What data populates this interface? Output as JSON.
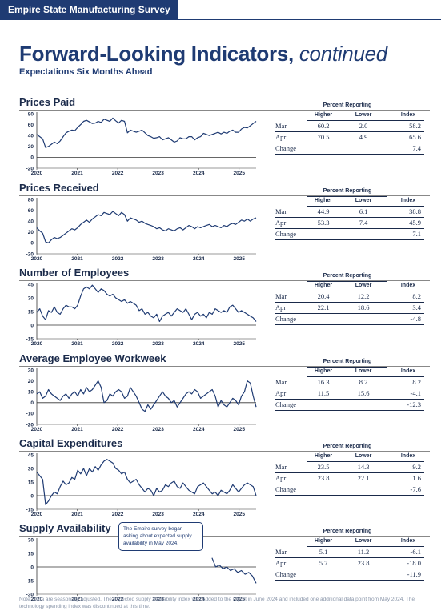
{
  "header": {
    "banner": "Empire State Manufacturing Survey",
    "title": "Forward-Looking Indicators,",
    "title_italic": "continued",
    "subtitle": "Expectations Six Months Ahead"
  },
  "table_labels": {
    "percent_reporting": "Percent Reporting",
    "higher": "Higher",
    "lower": "Lower",
    "index": "Index",
    "rows": [
      "Mar",
      "Apr",
      "Change"
    ]
  },
  "callout": "The Empire survey began asking about expected supply availability in May 2024.",
  "note": "Note: Data are seasonally adjusted. The expected supply availability index was added to the report in June 2024 and included one additional data point from May 2024. The technology spending index was discontinued at this time.",
  "chart_data": [
    {
      "type": "line",
      "title": "Prices Paid",
      "x_ticks": [
        "2020",
        "2021",
        "2022",
        "2023",
        "2024",
        "2025"
      ],
      "y_ticks": [
        "80",
        "60",
        "40",
        "20",
        "0",
        "-20"
      ],
      "ylim": [
        -20,
        80
      ],
      "x_start": 2020.0,
      "values": [
        42,
        38,
        34,
        18,
        20,
        24,
        28,
        25,
        30,
        38,
        45,
        48,
        50,
        49,
        55,
        60,
        66,
        68,
        65,
        62,
        63,
        66,
        64,
        70,
        68,
        66,
        72,
        67,
        63,
        68,
        66,
        45,
        50,
        48,
        46,
        48,
        50,
        45,
        40,
        38,
        35,
        36,
        38,
        32,
        34,
        36,
        32,
        28,
        30,
        36,
        34,
        34,
        38,
        38,
        32,
        36,
        38,
        44,
        42,
        40,
        42,
        44,
        46,
        43,
        46,
        44,
        48,
        50,
        46,
        46,
        52,
        55,
        54,
        58,
        62,
        66
      ],
      "table": {
        "mar": [
          "60.2",
          "2.0",
          "58.2"
        ],
        "apr": [
          "70.5",
          "4.9",
          "65.6"
        ],
        "change": "7.4"
      }
    },
    {
      "type": "line",
      "title": "Prices Received",
      "x_ticks": [
        "2020",
        "2021",
        "2022",
        "2023",
        "2024",
        "2025"
      ],
      "y_ticks": [
        "80",
        "60",
        "40",
        "20",
        "0",
        "-20"
      ],
      "ylim": [
        -20,
        80
      ],
      "x_start": 2020.0,
      "values": [
        28,
        22,
        18,
        2,
        0,
        6,
        10,
        8,
        10,
        14,
        18,
        22,
        26,
        24,
        28,
        34,
        38,
        42,
        38,
        44,
        48,
        52,
        50,
        56,
        54,
        52,
        58,
        54,
        50,
        56,
        52,
        40,
        46,
        44,
        42,
        38,
        40,
        36,
        34,
        32,
        30,
        26,
        28,
        24,
        22,
        26,
        24,
        22,
        26,
        28,
        24,
        28,
        32,
        30,
        26,
        30,
        28,
        30,
        32,
        34,
        30,
        32,
        30,
        28,
        32,
        30,
        34,
        36,
        34,
        38,
        42,
        40,
        44,
        40,
        44,
        46
      ],
      "table": {
        "mar": [
          "44.9",
          "6.1",
          "38.8"
        ],
        "apr": [
          "53.3",
          "7.4",
          "45.9"
        ],
        "change": "7.1"
      }
    },
    {
      "type": "line",
      "title": "Number of Employees",
      "x_ticks": [
        "2020",
        "2021",
        "2022",
        "2023",
        "2024",
        "2025"
      ],
      "y_ticks": [
        "45",
        "30",
        "15",
        "0",
        "-15"
      ],
      "ylim": [
        -15,
        45
      ],
      "x_start": 2020.0,
      "values": [
        14,
        18,
        10,
        6,
        16,
        14,
        20,
        14,
        12,
        18,
        22,
        20,
        20,
        18,
        22,
        32,
        40,
        42,
        40,
        44,
        40,
        36,
        40,
        38,
        34,
        32,
        34,
        30,
        28,
        26,
        28,
        24,
        26,
        24,
        22,
        16,
        18,
        12,
        14,
        10,
        8,
        12,
        4,
        10,
        12,
        14,
        10,
        14,
        18,
        16,
        14,
        18,
        12,
        6,
        12,
        14,
        10,
        12,
        8,
        14,
        12,
        18,
        16,
        14,
        16,
        14,
        20,
        22,
        18,
        14,
        16,
        14,
        12,
        10,
        8,
        4
      ],
      "table": {
        "mar": [
          "20.4",
          "12.2",
          "8.2"
        ],
        "apr": [
          "22.1",
          "18.6",
          "3.4"
        ],
        "change": "-4.8"
      }
    },
    {
      "type": "line",
      "title": "Average Employee Workweek",
      "x_ticks": [
        "2020",
        "2021",
        "2022",
        "2023",
        "2024",
        "2025"
      ],
      "y_ticks": [
        "30",
        "20",
        "10",
        "0",
        "-10",
        "-20"
      ],
      "ylim": [
        -20,
        30
      ],
      "x_start": 2020.0,
      "values": [
        8,
        10,
        4,
        6,
        12,
        8,
        6,
        4,
        2,
        6,
        8,
        4,
        8,
        10,
        6,
        12,
        8,
        14,
        10,
        12,
        16,
        20,
        14,
        0,
        2,
        8,
        6,
        10,
        12,
        10,
        4,
        6,
        14,
        10,
        6,
        0,
        -6,
        -8,
        -2,
        -6,
        -2,
        2,
        6,
        10,
        6,
        4,
        0,
        2,
        -4,
        0,
        4,
        8,
        10,
        8,
        12,
        10,
        4,
        6,
        8,
        10,
        12,
        6,
        -4,
        2,
        -2,
        -4,
        0,
        4,
        2,
        -2,
        6,
        10,
        20,
        18,
        6,
        -4
      ],
      "table": {
        "mar": [
          "16.3",
          "8.2",
          "8.2"
        ],
        "apr": [
          "11.5",
          "15.6",
          "-4.1"
        ],
        "change": "-12.3"
      }
    },
    {
      "type": "line",
      "title": "Capital Expenditures",
      "x_ticks": [
        "2020",
        "2021",
        "2022",
        "2023",
        "2024",
        "2025"
      ],
      "y_ticks": [
        "45",
        "30",
        "15",
        "0",
        "-15"
      ],
      "ylim": [
        -15,
        45
      ],
      "x_start": 2020.0,
      "values": [
        26,
        22,
        18,
        -10,
        -6,
        0,
        4,
        2,
        10,
        16,
        12,
        14,
        20,
        18,
        28,
        24,
        30,
        22,
        30,
        26,
        32,
        28,
        34,
        38,
        40,
        38,
        36,
        30,
        28,
        24,
        26,
        18,
        14,
        16,
        18,
        12,
        8,
        4,
        8,
        6,
        0,
        8,
        4,
        6,
        12,
        10,
        14,
        16,
        10,
        8,
        14,
        10,
        6,
        4,
        2,
        10,
        12,
        14,
        10,
        6,
        2,
        4,
        0,
        6,
        4,
        2,
        6,
        12,
        8,
        4,
        8,
        12,
        14,
        12,
        10,
        0
      ],
      "table": {
        "mar": [
          "23.5",
          "14.3",
          "9.2"
        ],
        "apr": [
          "23.8",
          "22.1",
          "1.6"
        ],
        "change": "-7.6"
      }
    },
    {
      "type": "line",
      "title": "Supply Availability",
      "x_ticks": [
        "2020",
        "2021",
        "2022",
        "2023",
        "2024",
        "2025"
      ],
      "y_ticks": [
        "30",
        "15",
        "0",
        "-15",
        "-30"
      ],
      "ylim": [
        -30,
        30
      ],
      "x_start": 2024.33,
      "values": [
        10,
        0,
        2,
        -2,
        0,
        -4,
        -2,
        -6,
        -4,
        -8,
        -6,
        -10,
        -18
      ],
      "table": {
        "mar": [
          "5.1",
          "11.2",
          "-6.1"
        ],
        "apr": [
          "5.7",
          "23.8",
          "-18.0"
        ],
        "change": "-11.9"
      }
    }
  ]
}
